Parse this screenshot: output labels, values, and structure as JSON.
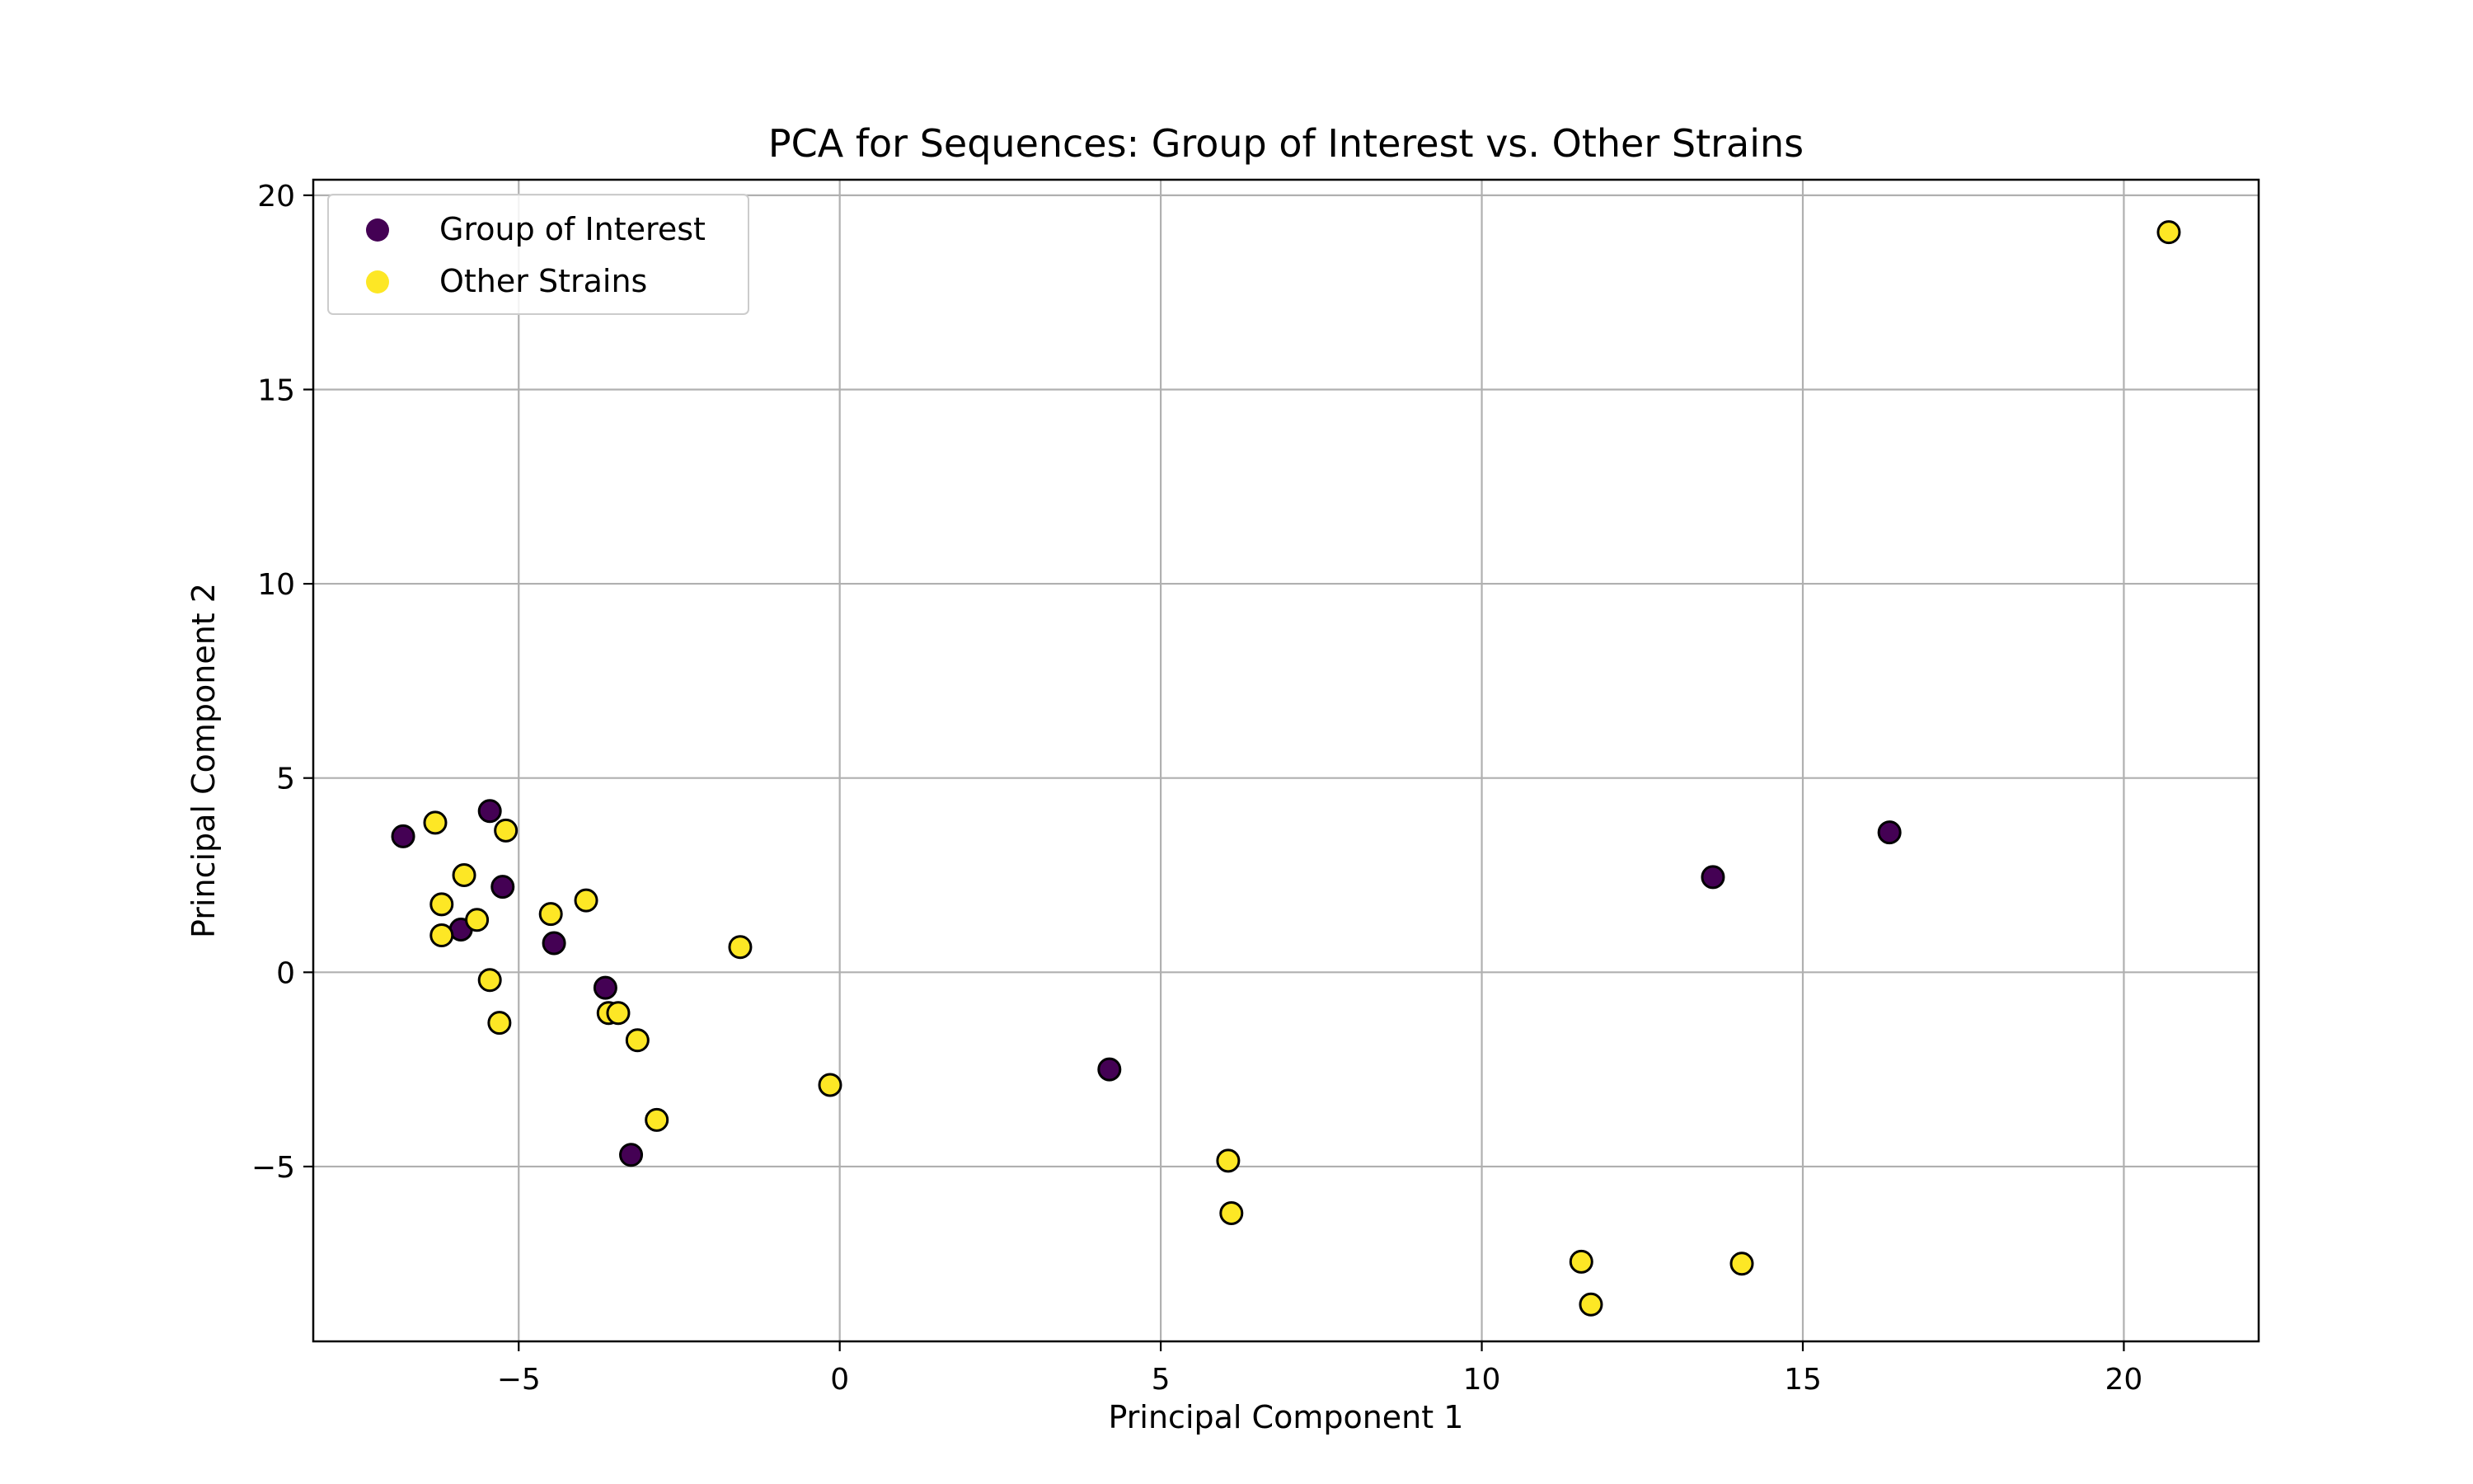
{
  "chart_data": {
    "type": "scatter",
    "title": "PCA for Sequences: Group of Interest vs. Other Strains",
    "xlabel": "Principal Component 1",
    "ylabel": "Principal Component 2",
    "xlim": [
      -8.2,
      22.1
    ],
    "ylim": [
      -9.5,
      20.4
    ],
    "xticks": [
      -5,
      0,
      5,
      10,
      15,
      20
    ],
    "yticks": [
      -5,
      0,
      5,
      10,
      15,
      20
    ],
    "xtick_labels": [
      "−5",
      "0",
      "5",
      "10",
      "15",
      "20"
    ],
    "ytick_labels": [
      "−5",
      "0",
      "5",
      "10",
      "15",
      "20"
    ],
    "grid": true,
    "legend_position": "top-left",
    "series": [
      {
        "name": "Group of Interest",
        "color": "#440154",
        "points": [
          [
            -6.8,
            3.5
          ],
          [
            -5.45,
            4.15
          ],
          [
            -5.25,
            2.2
          ],
          [
            -5.9,
            1.1
          ],
          [
            -4.45,
            0.75
          ],
          [
            -3.65,
            -0.4
          ],
          [
            -3.25,
            -4.7
          ],
          [
            4.2,
            -2.5
          ],
          [
            13.6,
            2.45
          ],
          [
            16.35,
            3.6
          ]
        ]
      },
      {
        "name": "Other Strains",
        "color": "#fde725",
        "points": [
          [
            -6.3,
            3.85
          ],
          [
            -5.2,
            3.65
          ],
          [
            -5.85,
            2.5
          ],
          [
            -6.2,
            1.75
          ],
          [
            -6.2,
            0.95
          ],
          [
            -5.65,
            1.35
          ],
          [
            -3.95,
            1.85
          ],
          [
            -4.5,
            1.5
          ],
          [
            -5.45,
            -0.2
          ],
          [
            -5.3,
            -1.3
          ],
          [
            -3.6,
            -1.05
          ],
          [
            -3.45,
            -1.05
          ],
          [
            -3.15,
            -1.75
          ],
          [
            -2.85,
            -3.8
          ],
          [
            -1.55,
            0.65
          ],
          [
            -0.15,
            -2.9
          ],
          [
            6.05,
            -4.85
          ],
          [
            6.1,
            -6.2
          ],
          [
            11.55,
            -7.45
          ],
          [
            11.7,
            -8.55
          ],
          [
            14.05,
            -7.5
          ],
          [
            20.7,
            19.05
          ]
        ]
      }
    ]
  }
}
